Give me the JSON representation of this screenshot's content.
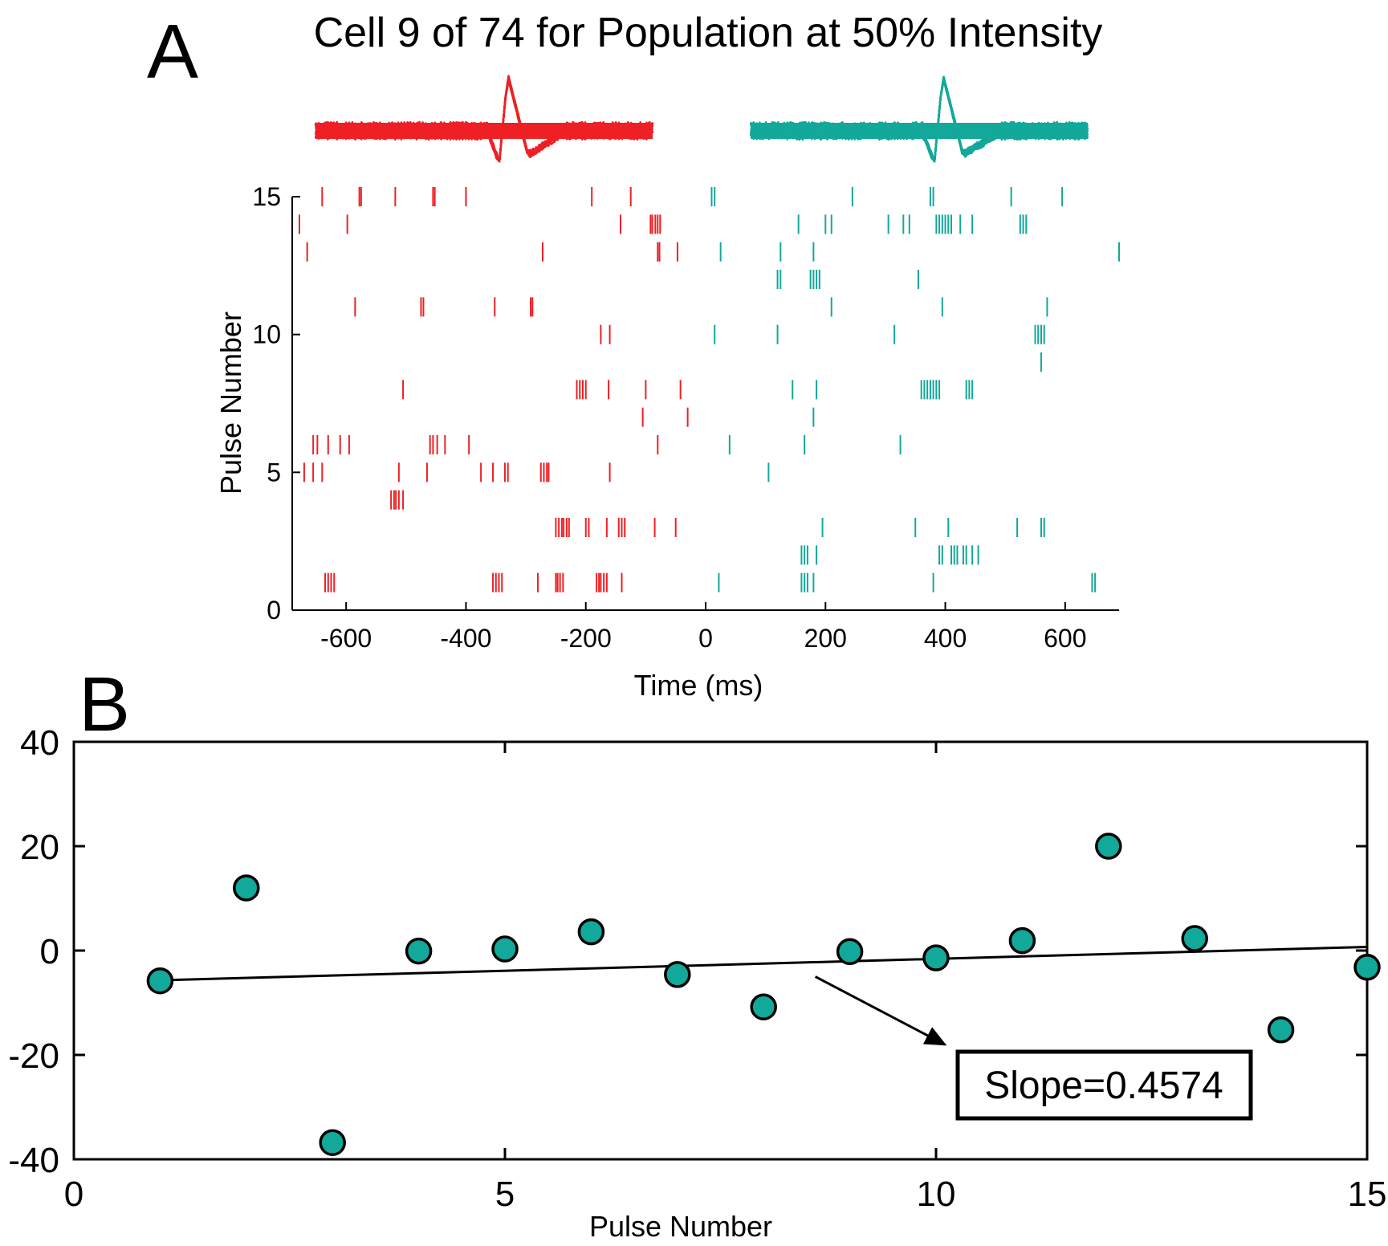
{
  "panel_a": {
    "letter": "A",
    "title": "Cell 9 of 74 for Population at 50% Intensity"
  },
  "panel_b": {
    "letter": "B",
    "annotation": "Slope=0.4574"
  },
  "colors": {
    "pre": "#ee2025",
    "post": "#12a89a",
    "axis": "#000000"
  },
  "chart_data": [
    {
      "type": "scatter",
      "subtype": "raster",
      "title": "Cell 9 of 74 for Population at 50% Intensity",
      "xlabel": "Time (ms)",
      "ylabel": "Pulse Number",
      "xlim": [
        -690,
        690
      ],
      "ylim": [
        0,
        15
      ],
      "xticks": [
        -600,
        -400,
        -200,
        0,
        200,
        400,
        600
      ],
      "xtick_labels": [
        "-600",
        "-400",
        "-200",
        "0",
        "200",
        "400",
        "600"
      ],
      "yticks": [
        0,
        5,
        10,
        15
      ],
      "ytick_labels": [
        "0",
        "5",
        "10",
        "15"
      ],
      "waveforms": [
        {
          "color": "#ee2025",
          "tag": "pre"
        },
        {
          "color": "#12a89a",
          "tag": "post"
        }
      ],
      "series": [
        {
          "color": "#ee2025",
          "rows": [
            {
              "pulse": 15,
              "times": [
                -640,
                -578,
                -575,
                -518,
                -455,
                -452,
                -400,
                -190,
                -125
              ]
            },
            {
              "pulse": 14,
              "times": [
                -678,
                -598,
                -142,
                -92,
                -89,
                -84,
                -80,
                -76
              ]
            },
            {
              "pulse": 13,
              "times": [
                -665,
                -272,
                -80,
                -77,
                -47
              ]
            },
            {
              "pulse": 11,
              "times": [
                -585,
                -475,
                -471,
                -352,
                -292,
                -289
              ]
            },
            {
              "pulse": 10,
              "times": [
                -175,
                -160
              ]
            },
            {
              "pulse": 8,
              "times": [
                -505,
                -215,
                -210,
                -205,
                -200,
                -162,
                -100,
                -42
              ]
            },
            {
              "pulse": 7,
              "times": [
                -105,
                -30
              ]
            },
            {
              "pulse": 6,
              "times": [
                -655,
                -648,
                -630,
                -610,
                -595,
                -460,
                -455,
                -448,
                -435,
                -395,
                -80
              ]
            },
            {
              "pulse": 5,
              "times": [
                -670,
                -655,
                -640,
                -512,
                -465,
                -375,
                -355,
                -335,
                -330,
                -275,
                -270,
                -265,
                -262,
                -160
              ]
            },
            {
              "pulse": 4,
              "times": [
                -525,
                -520,
                -517,
                -512,
                -505
              ]
            },
            {
              "pulse": 3,
              "times": [
                -250,
                -245,
                -240,
                -237,
                -232,
                -228,
                -200,
                -195,
                -165,
                -145,
                -140,
                -135,
                -85,
                -50
              ]
            },
            {
              "pulse": 1,
              "times": [
                -635,
                -630,
                -625,
                -620,
                -355,
                -350,
                -345,
                -340,
                -280,
                -250,
                -247,
                -243,
                -238,
                -182,
                -178,
                -175,
                -170,
                -165,
                -140
              ]
            }
          ]
        },
        {
          "color": "#12a89a",
          "rows": [
            {
              "pulse": 15,
              "times": [
                10,
                15,
                245,
                375,
                380,
                510,
                595
              ]
            },
            {
              "pulse": 14,
              "times": [
                155,
                200,
                210,
                305,
                330,
                340,
                385,
                390,
                395,
                400,
                405,
                410,
                425,
                445,
                525,
                530,
                535
              ]
            },
            {
              "pulse": 13,
              "times": [
                25,
                125,
                180,
                690
              ]
            },
            {
              "pulse": 12,
              "times": [
                120,
                125,
                175,
                180,
                185,
                190,
                355
              ]
            },
            {
              "pulse": 11,
              "times": [
                210,
                395,
                570
              ]
            },
            {
              "pulse": 10,
              "times": [
                15,
                120,
                315,
                550,
                555,
                560,
                565
              ]
            },
            {
              "pulse": 9,
              "times": [
                560
              ]
            },
            {
              "pulse": 8,
              "times": [
                145,
                185,
                360,
                365,
                370,
                375,
                380,
                385,
                390,
                435,
                440,
                445
              ]
            },
            {
              "pulse": 7,
              "times": [
                180
              ]
            },
            {
              "pulse": 6,
              "times": [
                40,
                165,
                325
              ]
            },
            {
              "pulse": 5,
              "times": [
                105
              ]
            },
            {
              "pulse": 3,
              "times": [
                195,
                350,
                405,
                520,
                560,
                565
              ]
            },
            {
              "pulse": 2,
              "times": [
                160,
                165,
                170,
                185,
                390,
                395,
                410,
                415,
                420,
                430,
                435,
                445,
                455
              ]
            },
            {
              "pulse": 1,
              "times": [
                22,
                160,
                165,
                170,
                180,
                380,
                645,
                650
              ]
            }
          ]
        }
      ]
    },
    {
      "type": "scatter",
      "xlabel": "Pulse Number",
      "ylabel": "",
      "xlim": [
        0,
        15
      ],
      "ylim": [
        -40,
        40
      ],
      "xticks": [
        0,
        5,
        10,
        15
      ],
      "xtick_labels": [
        "0",
        "5",
        "10",
        "15"
      ],
      "yticks": [
        40,
        20,
        0,
        -20,
        -40
      ],
      "ytick_labels": [
        "40",
        "20",
        "0",
        "-20",
        "-40"
      ],
      "series": [
        {
          "color": "#12a89a",
          "points": [
            {
              "x": 1,
              "y": -5.8
            },
            {
              "x": 2,
              "y": 12
            },
            {
              "x": 3,
              "y": -36.8
            },
            {
              "x": 4,
              "y": -0.1
            },
            {
              "x": 5,
              "y": 0.3
            },
            {
              "x": 6,
              "y": 3.6
            },
            {
              "x": 7,
              "y": -4.6
            },
            {
              "x": 8,
              "y": -10.8
            },
            {
              "x": 9,
              "y": -0.2
            },
            {
              "x": 10,
              "y": -1.4
            },
            {
              "x": 11,
              "y": 1.9
            },
            {
              "x": 12,
              "y": 20
            },
            {
              "x": 13,
              "y": 2.3
            },
            {
              "x": 14,
              "y": -15.2
            },
            {
              "x": 15,
              "y": -3.2
            }
          ]
        }
      ],
      "fit_line": {
        "slope": 0.4574,
        "x": [
          1,
          15
        ],
        "y": [
          -5.7,
          0.7
        ]
      },
      "annotation": {
        "text": "Slope=0.4574",
        "arrow_from": [
          8.6,
          -5
        ],
        "arrow_to": [
          10.1,
          -18
        ]
      }
    }
  ]
}
